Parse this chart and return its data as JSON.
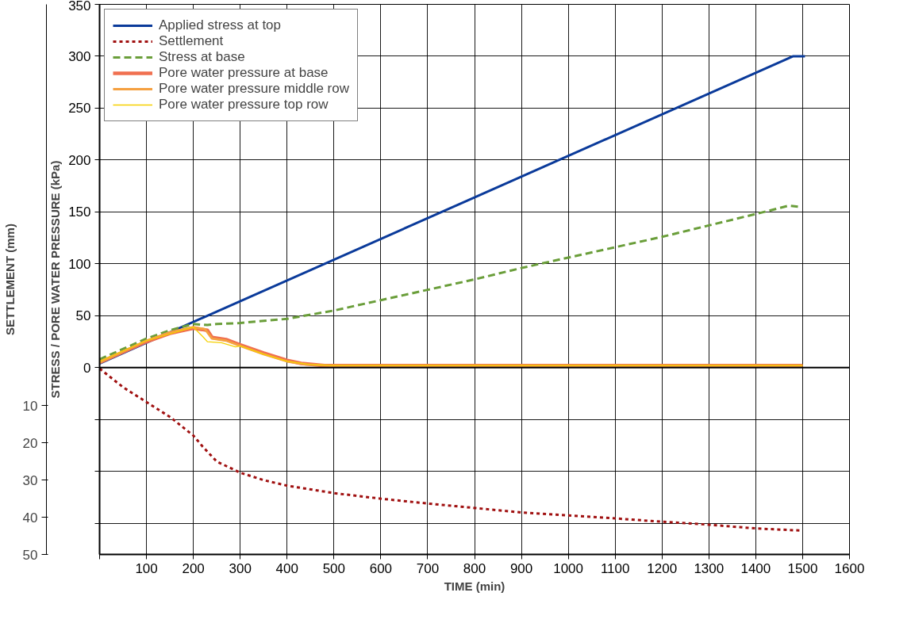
{
  "chart_data": {
    "type": "line",
    "xlabel": "TIME (min)",
    "ylabel": "STRESS / PORE WATER PRESSURE (kPa)",
    "y2label": "SETTLEMENT (mm)",
    "xlim": [
      0,
      1600
    ],
    "xticks": [
      {
        "value": 0,
        "label": null
      },
      100,
      200,
      300,
      400,
      500,
      600,
      700,
      800,
      900,
      1000,
      1100,
      1200,
      1300,
      1400,
      1500,
      1600
    ],
    "ylim": [
      -180,
      350
    ],
    "yticks": [
      {
        "value": -150,
        "label": null
      },
      {
        "value": -100,
        "label": null
      },
      {
        "value": -50,
        "label": null
      },
      0,
      50,
      100,
      150,
      200,
      250,
      300,
      350
    ],
    "y2lim": [
      50,
      -98
    ],
    "y2ticks": [
      10,
      20,
      30,
      40,
      50
    ],
    "grid": true,
    "legend": "top left",
    "ref_lines": [
      {
        "axis": "y",
        "value": 0,
        "label": null,
        "color": "#000000"
      }
    ],
    "series": [
      {
        "name": "Applied stress at top",
        "color": "#0a3a9a",
        "line_style": "solid",
        "x": [
          0,
          1480,
          1505
        ],
        "values": [
          4,
          300,
          300
        ]
      },
      {
        "name": "Settlement",
        "color": "#a01010",
        "line_style": "dotted",
        "axis": "y2",
        "x": [
          0,
          50,
          100,
          150,
          200,
          220,
          250,
          300,
          350,
          400,
          500,
          600,
          700,
          800,
          900,
          1000,
          1100,
          1200,
          1300,
          1400,
          1500
        ],
        "values": [
          0,
          5,
          9,
          13,
          18,
          21,
          25,
          28,
          30,
          31.5,
          33.5,
          35,
          36.3,
          37.5,
          38.7,
          39.5,
          40.3,
          41.2,
          42,
          43,
          43.6
        ]
      },
      {
        "name": "Stress at base",
        "color": "#6a9e3a",
        "line_style": "dashed",
        "x": [
          0,
          100,
          150,
          200,
          230,
          250,
          300,
          400,
          500,
          600,
          700,
          800,
          900,
          1000,
          1100,
          1200,
          1300,
          1400,
          1470,
          1490
        ],
        "values": [
          8,
          28,
          36,
          42,
          41,
          42,
          43,
          47,
          55,
          65,
          75,
          85,
          96,
          106,
          116,
          126,
          137,
          148,
          156,
          155
        ]
      },
      {
        "name": "Pore water pressure at base",
        "color": "#f07050",
        "line_style": "solid",
        "x": [
          0,
          100,
          150,
          200,
          230,
          240,
          270,
          300,
          350,
          400,
          430,
          480,
          1500
        ],
        "values": [
          5,
          25,
          33,
          38,
          36,
          29,
          27,
          22,
          14,
          7,
          4,
          2,
          2
        ]
      },
      {
        "name": "Pore water pressure middle row",
        "color": "#f5a040",
        "line_style": "solid",
        "x": [
          0,
          100,
          150,
          200,
          225,
          240,
          270,
          300,
          350,
          400,
          440,
          490,
          1500
        ],
        "values": [
          5,
          26,
          34,
          39,
          37,
          28,
          26,
          21,
          13,
          6,
          3,
          2,
          2
        ]
      },
      {
        "name": "Pore water pressure top row",
        "color": "#f5d000",
        "line_style": "solid",
        "x": [
          0,
          100,
          200,
          220,
          230,
          260,
          290,
          300,
          350,
          400,
          450,
          500,
          1500
        ],
        "values": [
          6,
          26,
          39,
          30,
          25,
          24,
          20,
          21,
          13,
          6,
          3,
          2,
          2
        ]
      }
    ]
  }
}
